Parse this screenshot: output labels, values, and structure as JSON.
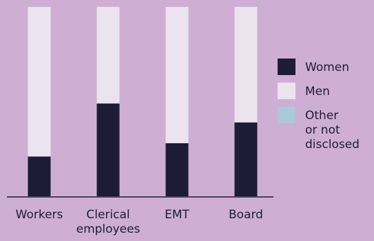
{
  "chart_data": {
    "type": "bar",
    "stacked": true,
    "normalized": true,
    "categories": [
      [
        "Workers"
      ],
      [
        "Clerical",
        "employees"
      ],
      [
        "EMT"
      ],
      [
        "Board"
      ]
    ],
    "series": [
      {
        "name": "Women",
        "values": [
          21,
          49,
          28,
          39
        ],
        "color": "#1c1c36"
      },
      {
        "name": "Men",
        "values": [
          79,
          51,
          72,
          61
        ],
        "color": "#ebe3ee"
      },
      {
        "name": [
          "Other",
          "or not",
          "disclosed"
        ],
        "values": [
          0,
          0,
          0,
          0
        ],
        "color": "#a8cadb"
      }
    ],
    "ylim": [
      0,
      100
    ],
    "legend_position": "right",
    "grid": false,
    "background": "#cfaed4",
    "axis_color": "#1c1c36"
  }
}
